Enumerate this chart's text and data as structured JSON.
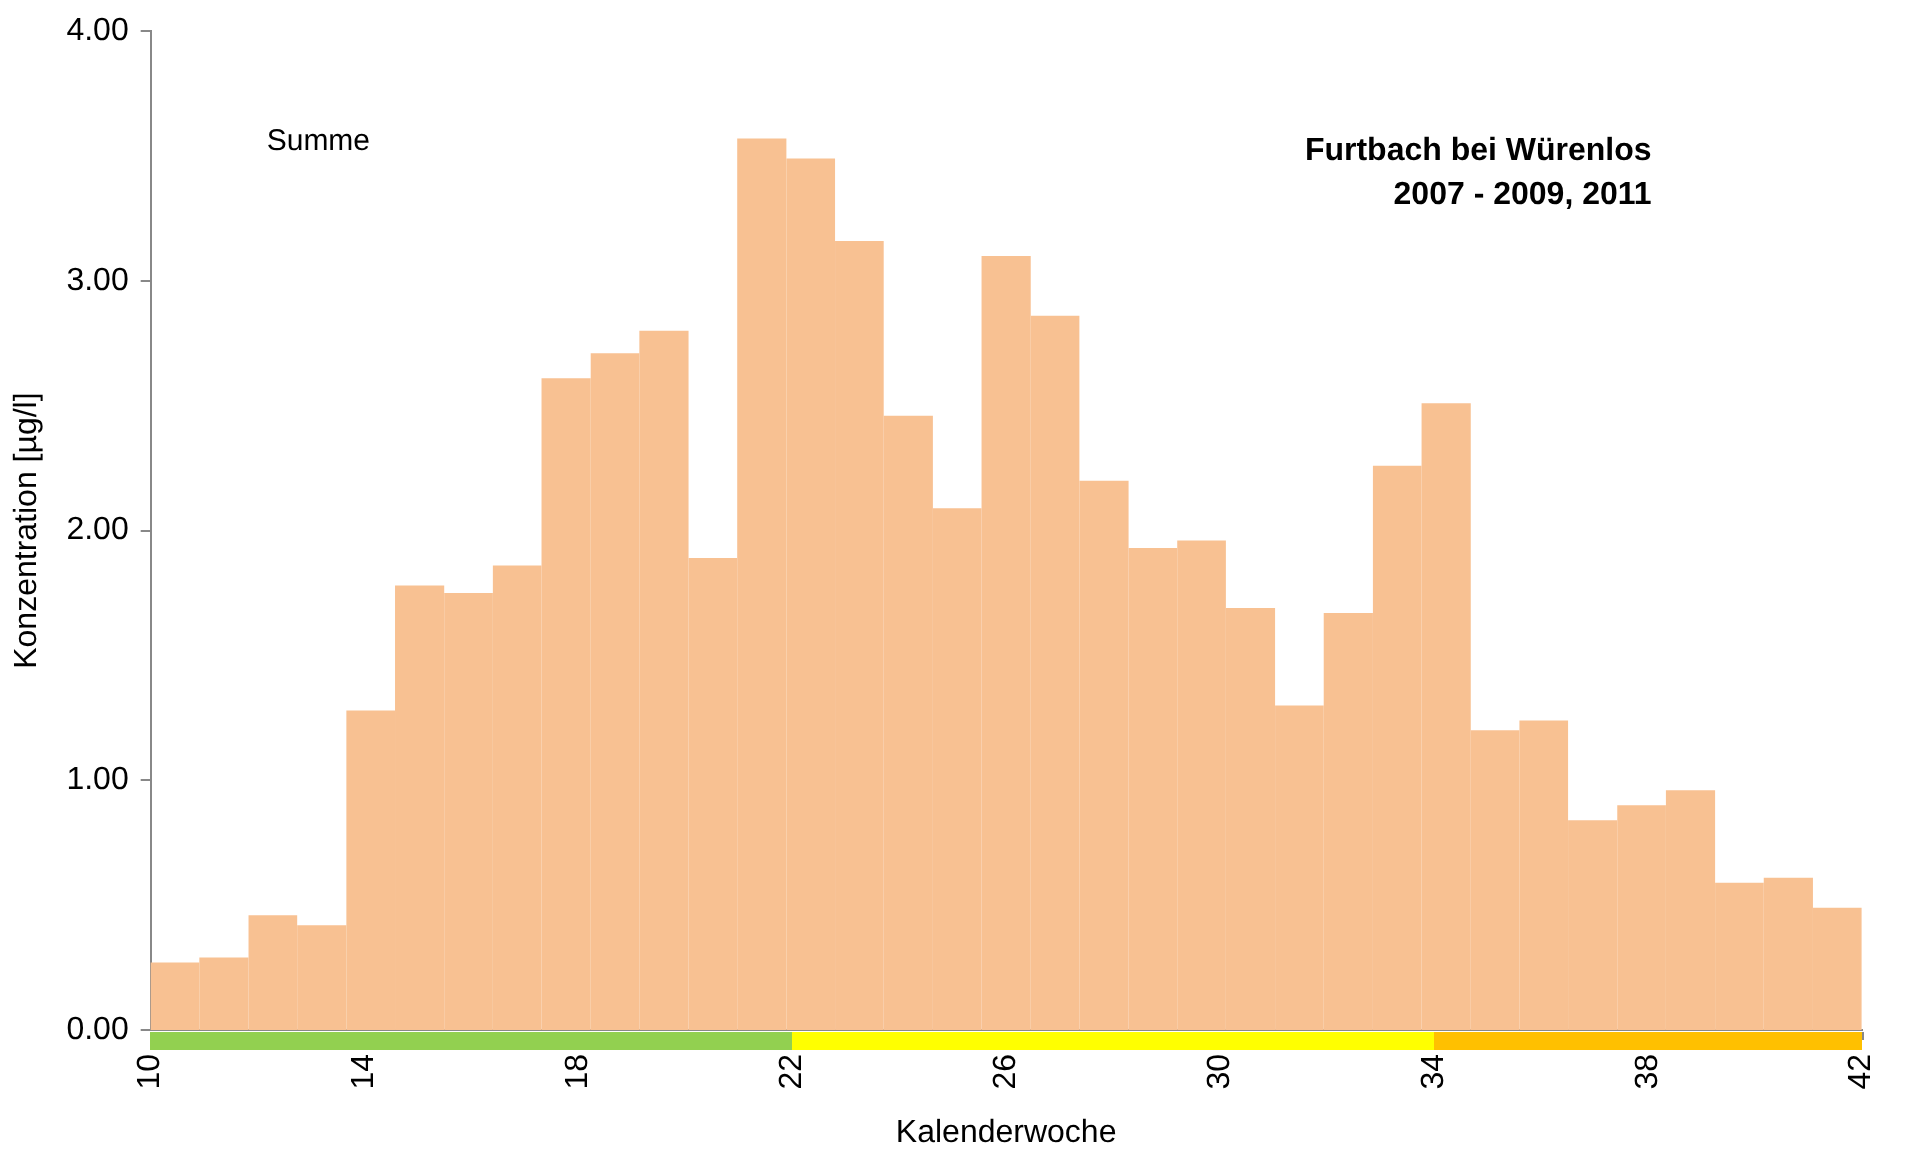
{
  "chart_data": {
    "type": "histogram",
    "title": "Furtbach bei Würenlos",
    "subtitle": "2007 - 2009, 2011",
    "xlabel": "Kalenderwoche",
    "ylabel": "Konzentration [µg/l]",
    "annotations": [
      "Summe"
    ],
    "bins": [
      10,
      10.91,
      11.83,
      12.74,
      13.66,
      14.57,
      15.49,
      16.4,
      17.31,
      18.23,
      19.14,
      20.06,
      20.97,
      21.89,
      22.8,
      23.71,
      24.63,
      25.54,
      26.46,
      27.37,
      28.29,
      29.2,
      30.11,
      31.03,
      31.94,
      32.86,
      33.77,
      34.69,
      35.6,
      36.51,
      37.43,
      38.34,
      39.26,
      40.17,
      41.09,
      42
    ],
    "values": [
      0.27,
      0.29,
      0.46,
      0.42,
      1.28,
      1.78,
      1.75,
      1.86,
      2.61,
      2.71,
      2.8,
      1.89,
      3.57,
      3.49,
      3.16,
      2.46,
      2.09,
      3.1,
      2.86,
      2.2,
      1.93,
      1.96,
      1.69,
      1.3,
      1.67,
      2.26,
      2.51,
      1.2,
      1.24,
      0.84,
      0.9,
      0.96,
      0.59,
      0.61,
      0.49
    ],
    "color": "#f8c192",
    "xlim": [
      10,
      42
    ],
    "xticks": [
      10,
      14,
      18,
      22,
      26,
      30,
      34,
      38,
      42
    ],
    "ylim": [
      0,
      4
    ],
    "yticks": [
      {
        "value": 0,
        "label": "0.00"
      },
      {
        "value": 1,
        "label": "1.00"
      },
      {
        "value": 2,
        "label": "2.00"
      },
      {
        "value": 3,
        "label": "3.00"
      },
      {
        "value": 4,
        "label": "4.00"
      }
    ],
    "grid": false,
    "legend": false
  }
}
